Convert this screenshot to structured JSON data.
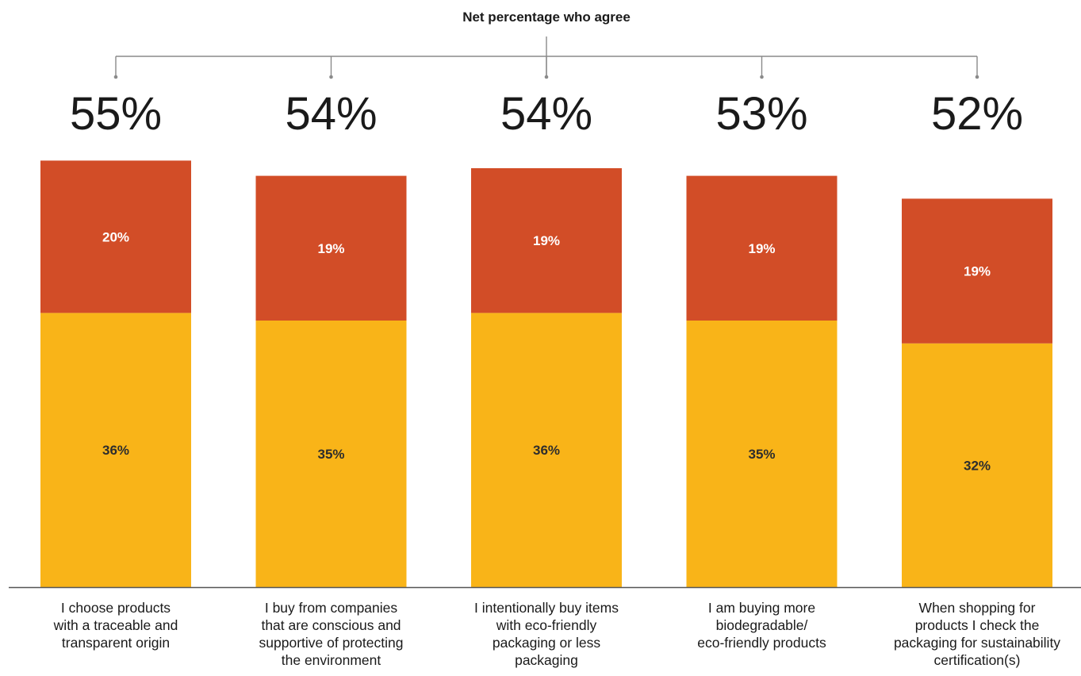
{
  "chart_data": {
    "type": "bar",
    "stacked": true,
    "title": "Net percentage who agree",
    "xlabel": "",
    "ylabel": "",
    "ylim": [
      0,
      60
    ],
    "grid": false,
    "legend": "none",
    "categories": [
      [
        "I choose products",
        "with a traceable and",
        "transparent origin"
      ],
      [
        "I buy from companies",
        "that are conscious and",
        "supportive of protecting",
        "the environment"
      ],
      [
        "I intentionally buy items",
        "with eco-friendly",
        "packaging or less",
        "packaging"
      ],
      [
        "I am buying more",
        "biodegradable/",
        "eco-friendly products"
      ],
      [
        "When shopping for",
        "products I check the",
        "packaging for sustainability",
        "certification(s)"
      ]
    ],
    "net_values": [
      55,
      54,
      54,
      53,
      52
    ],
    "net_labels": [
      "55%",
      "54%",
      "54%",
      "53%",
      "52%"
    ],
    "series": [
      {
        "values": [
          36,
          35,
          36,
          35,
          32
        ],
        "labels": [
          "36%",
          "35%",
          "36%",
          "35%",
          "32%"
        ],
        "color": "#F9B418",
        "label_color": "#2d2d2d"
      },
      {
        "values": [
          20,
          19,
          19,
          19,
          19
        ],
        "labels": [
          "20%",
          "19%",
          "19%",
          "19%",
          "19%"
        ],
        "color": "#D24D27",
        "label_color": "#ffffff"
      }
    ],
    "axis_color": "#555555",
    "bracket_color": "#8a8a8a"
  }
}
